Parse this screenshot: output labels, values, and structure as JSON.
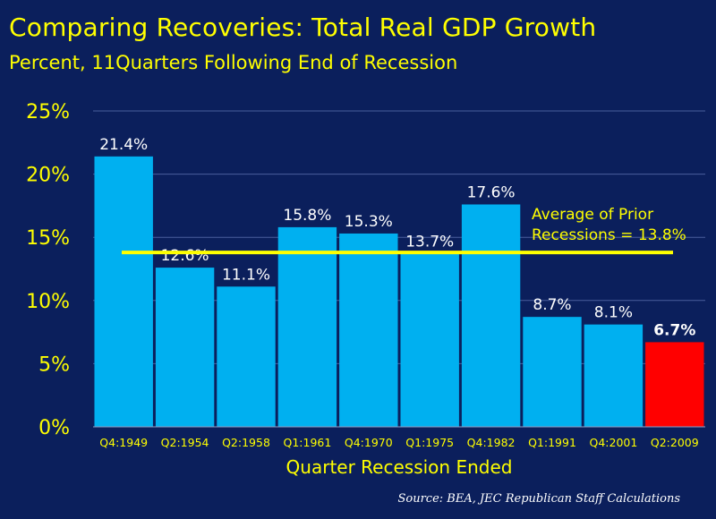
{
  "title": "Comparing Recoveries:  Total Real GDP Growth",
  "subtitle": "Percent, 11Quarters Following End of Recession",
  "source": "Source:  BEA, JEC Republican Staff Calculations",
  "colors": {
    "background": "#0b1f5c",
    "bar": "#00b0f0",
    "highlight_bar": "#ff0000",
    "average_line": "#ffff00",
    "text_yellow": "#ffff00",
    "text_white": "#ffffff"
  },
  "chart_data": {
    "type": "bar",
    "title": "Comparing Recoveries:  Total Real GDP Growth",
    "subtitle": "Percent, 11Quarters Following End of Recession",
    "xlabel": "Quarter Recession Ended",
    "ylabel": "",
    "ylim": [
      0,
      25
    ],
    "yticks": [
      0,
      5,
      10,
      15,
      20,
      25
    ],
    "ytick_labels": [
      "0%",
      "5%",
      "10%",
      "15%",
      "20%",
      "25%"
    ],
    "grid": true,
    "categories": [
      "Q4:1949",
      "Q2:1954",
      "Q2:1958",
      "Q1:1961",
      "Q4:1970",
      "Q1:1975",
      "Q4:1982",
      "Q1:1991",
      "Q4:2001",
      "Q2:2009"
    ],
    "values": [
      21.4,
      12.6,
      11.1,
      15.8,
      15.3,
      13.7,
      17.6,
      8.7,
      8.1,
      6.7
    ],
    "data_labels": [
      "21.4%",
      "12.6%",
      "11.1%",
      "15.8%",
      "15.3%",
      "13.7%",
      "17.6%",
      "8.7%",
      "8.1%",
      "6.7%"
    ],
    "highlight_index": 9,
    "average": {
      "value": 13.8,
      "label_line1": "Average of Prior",
      "label_line2": "Recessions = 13.8%"
    }
  }
}
